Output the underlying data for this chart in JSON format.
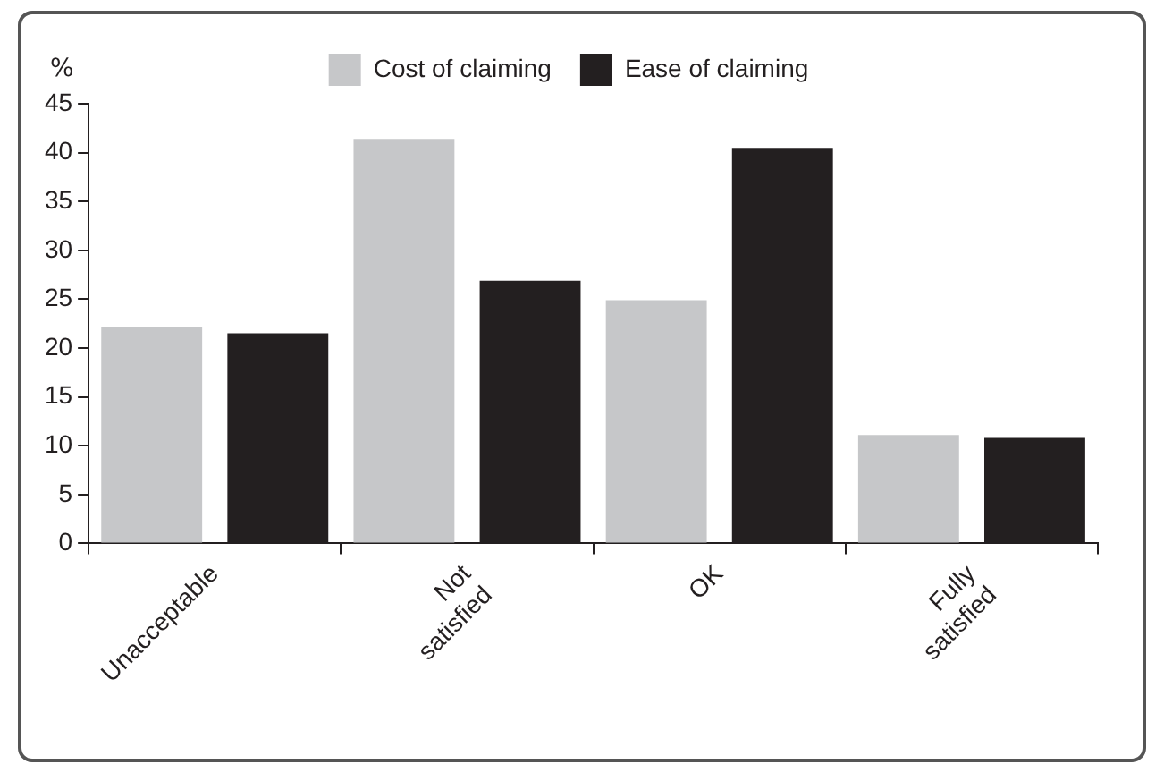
{
  "chart_data": {
    "type": "bar",
    "ylabel": "%",
    "categories": [
      "Unacceptable",
      "Not\nsatisfied",
      "OK",
      "Fully\nsatisfied"
    ],
    "series": [
      {
        "name": "Cost of claiming",
        "color": "#c6c7c9",
        "values": [
          22.2,
          41.4,
          24.9,
          11.1
        ]
      },
      {
        "name": "Ease of claiming",
        "color": "#231f20",
        "values": [
          21.5,
          26.9,
          40.5,
          10.8
        ]
      }
    ],
    "ylim": [
      0,
      45
    ],
    "yticks": [
      0,
      5,
      10,
      15,
      20,
      25,
      30,
      35,
      40,
      45
    ],
    "grid": false,
    "legend": "top"
  }
}
